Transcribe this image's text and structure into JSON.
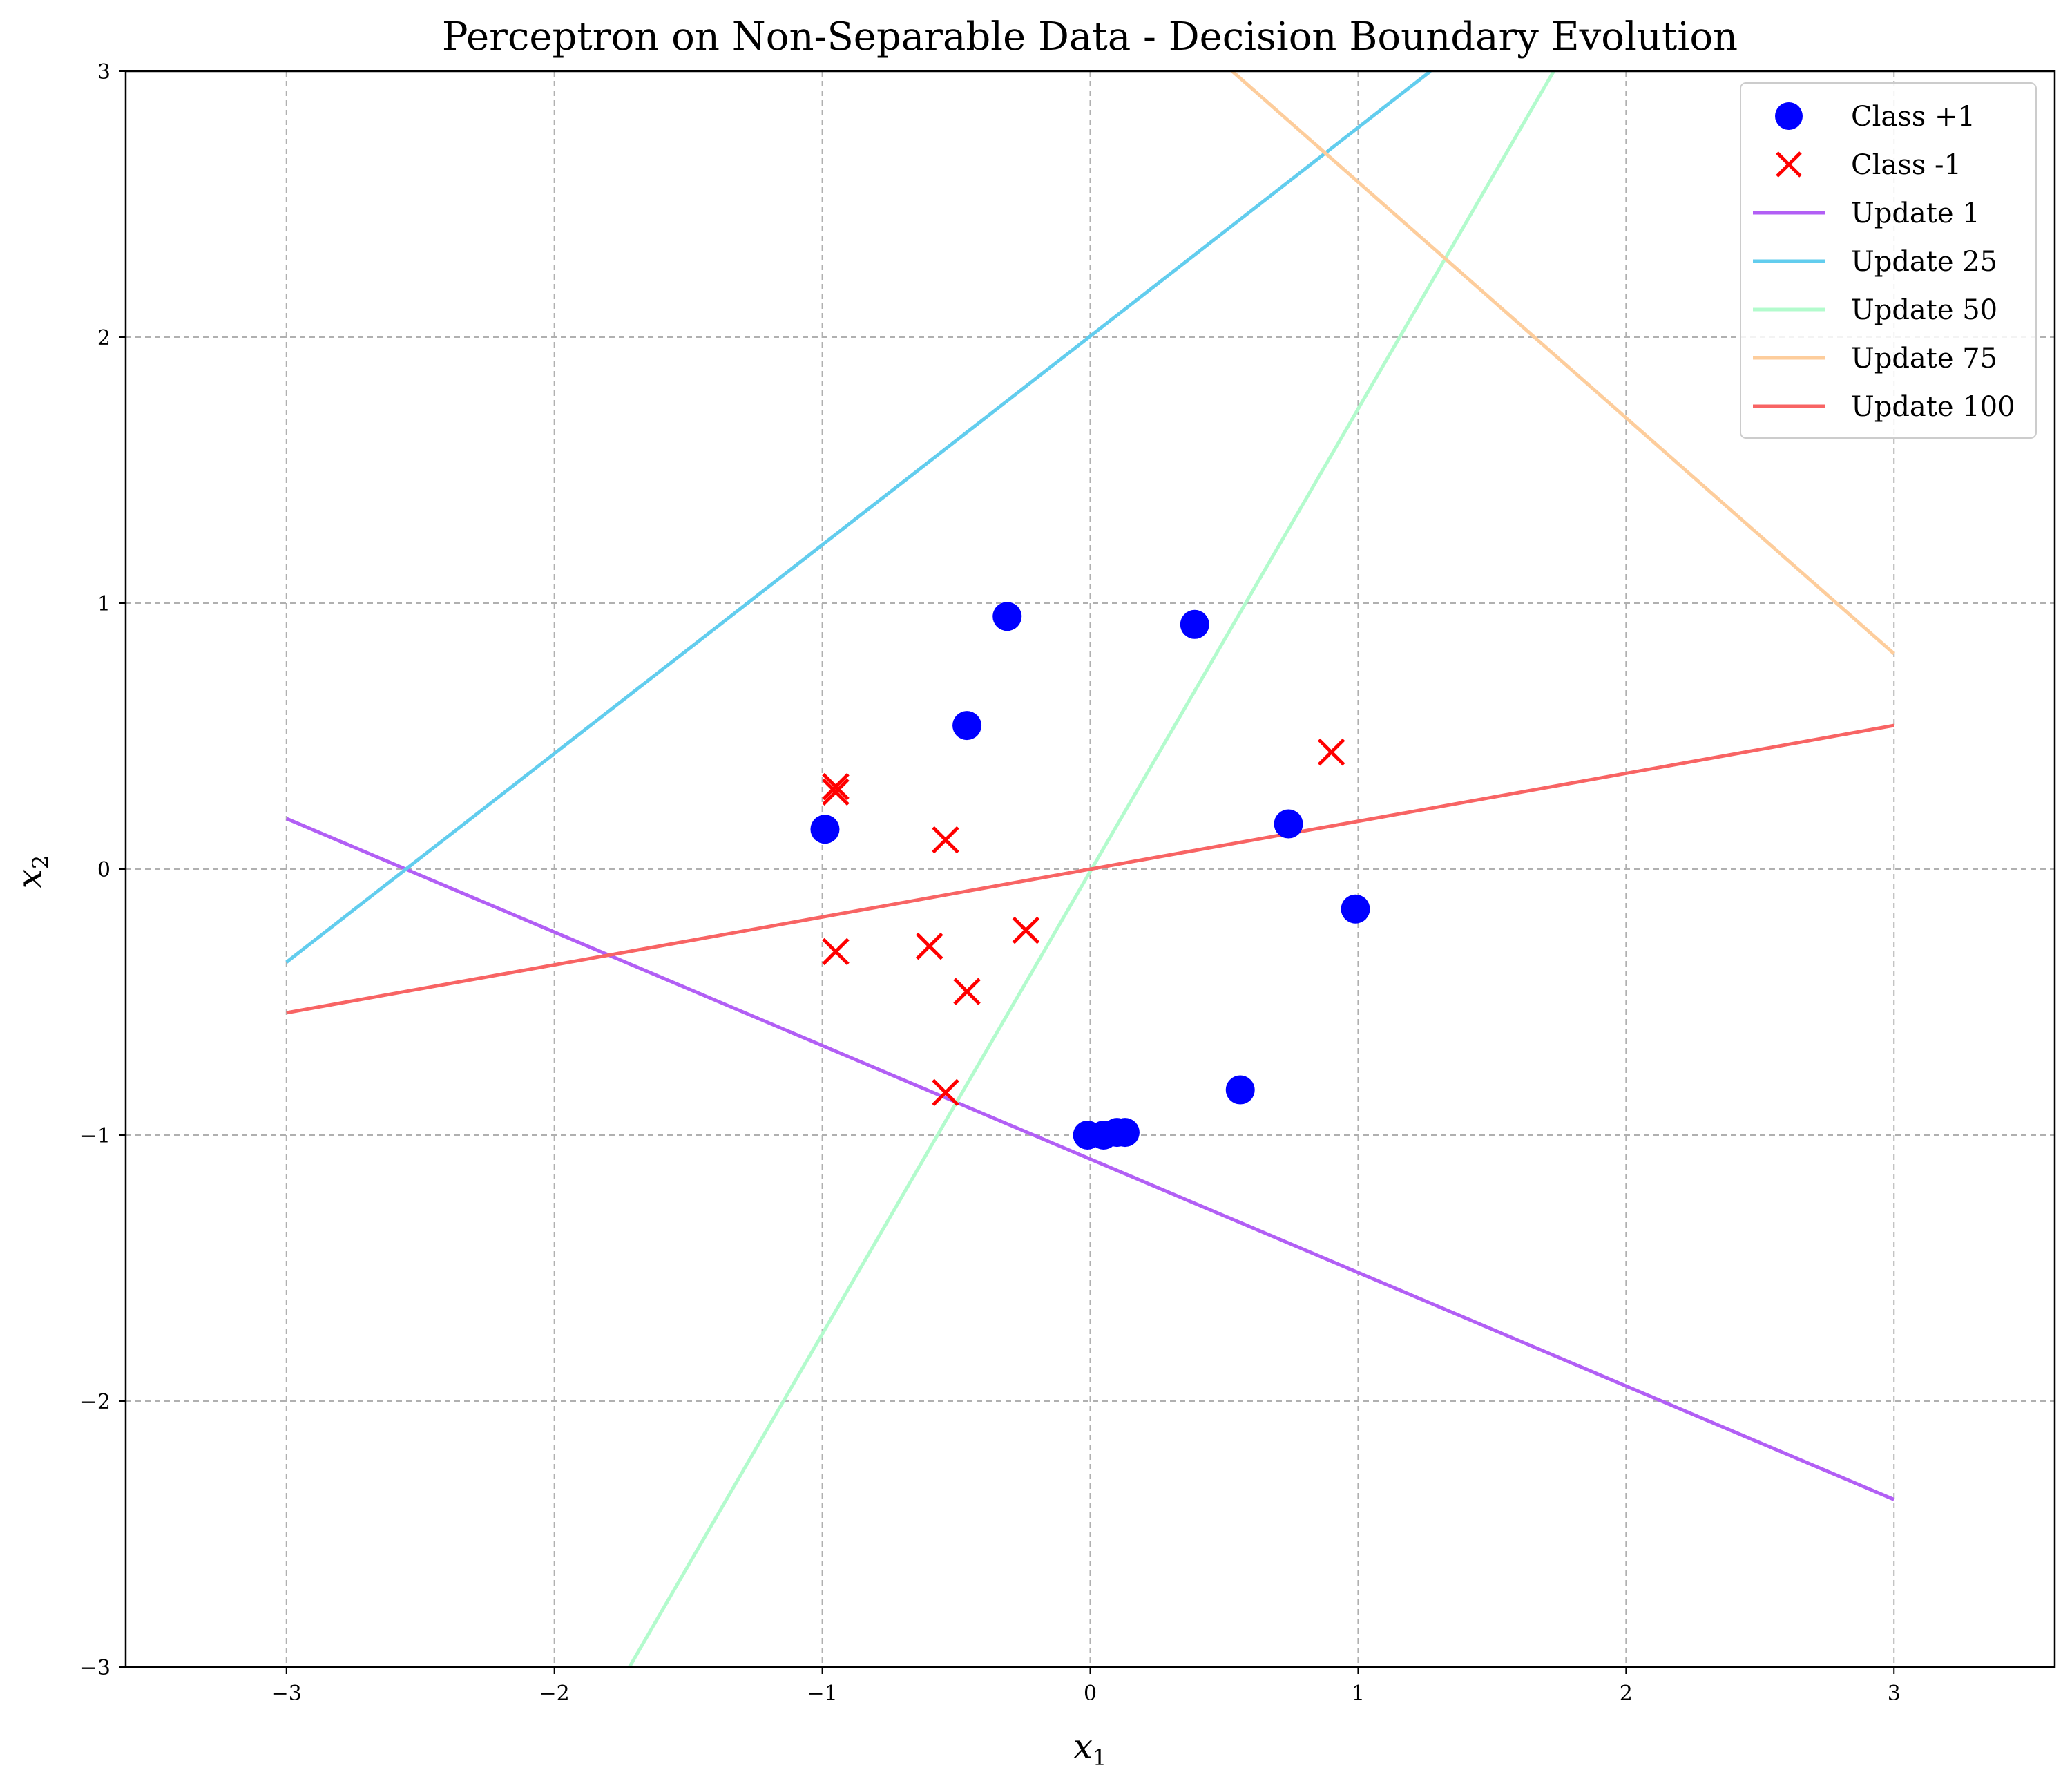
{
  "chart_data": {
    "type": "scatter",
    "title": "Perceptron on Non-Separable Data - Decision Boundary Evolution",
    "xlabel": "x",
    "xlabel_sub": "1",
    "ylabel": "x",
    "ylabel_sub": "2",
    "xlim": [
      -3.6,
      3.6
    ],
    "ylim": [
      -3,
      3
    ],
    "xticks": [
      -3,
      -2,
      -1,
      0,
      1,
      2,
      3
    ],
    "yticks": [
      -3,
      -2,
      -1,
      0,
      1,
      2,
      3
    ],
    "grid": true,
    "legend_position": "top-right",
    "scatter_series": [
      {
        "name": "Class +1",
        "marker": "circle",
        "color": "#0000ff",
        "points": [
          [
            -0.31,
            0.95
          ],
          [
            0.39,
            0.92
          ],
          [
            -0.46,
            0.54
          ],
          [
            -0.99,
            0.15
          ],
          [
            0.74,
            0.17
          ],
          [
            0.99,
            -0.15
          ],
          [
            0.56,
            -0.83
          ],
          [
            -0.01,
            -1.0
          ],
          [
            0.05,
            -1.0
          ],
          [
            0.1,
            -0.99
          ],
          [
            0.13,
            -0.99
          ]
        ]
      },
      {
        "name": "Class -1",
        "marker": "x",
        "color": "#ff0000",
        "points": [
          [
            -0.95,
            0.31
          ],
          [
            -0.95,
            0.29
          ],
          [
            0.9,
            0.44
          ],
          [
            -0.54,
            0.11
          ],
          [
            -0.95,
            -0.31
          ],
          [
            -0.6,
            -0.29
          ],
          [
            -0.24,
            -0.23
          ],
          [
            -0.46,
            -0.46
          ],
          [
            -0.54,
            -0.84
          ]
        ]
      }
    ],
    "line_series": [
      {
        "name": "Update 1",
        "color": "#b25ff5",
        "points": [
          [
            -3,
            0.19
          ],
          [
            3,
            -2.37
          ]
        ]
      },
      {
        "name": "Update 25",
        "color": "#62cdee",
        "points": [
          [
            -3,
            -0.35
          ],
          [
            1.27,
            3.0
          ]
        ]
      },
      {
        "name": "Update 50",
        "color": "#b3fbcd",
        "points": [
          [
            -1.72,
            -3.0
          ],
          [
            1.73,
            3.0
          ]
        ]
      },
      {
        "name": "Update 75",
        "color": "#fdcd9c",
        "points": [
          [
            0.53,
            3.0
          ],
          [
            3,
            0.81
          ]
        ]
      },
      {
        "name": "Update 100",
        "color": "#f86464",
        "points": [
          [
            -3,
            -0.54
          ],
          [
            3,
            0.54
          ]
        ]
      }
    ]
  }
}
